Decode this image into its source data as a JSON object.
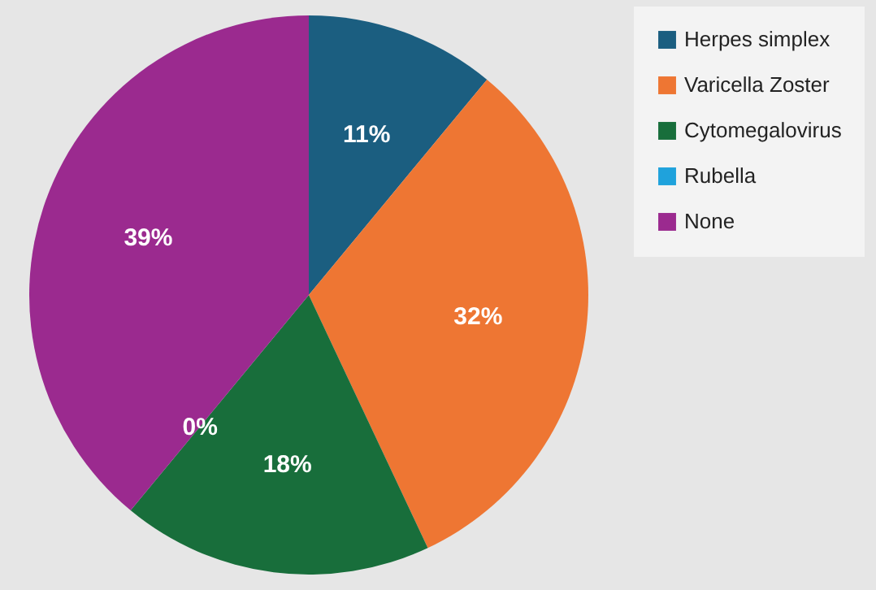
{
  "chart_data": {
    "type": "pie",
    "categories": [
      "Herpes simplex",
      "Varicella Zoster",
      "Cytomegalovirus",
      "Rubella",
      "None"
    ],
    "values": [
      11,
      32,
      18,
      0,
      39
    ],
    "colors": [
      "#1b5e80",
      "#ee7633",
      "#186e3b",
      "#1fa2dc",
      "#9b2a8f"
    ],
    "value_labels": [
      "11%",
      "32%",
      "18%",
      "0%",
      "39%"
    ],
    "legend": "right"
  }
}
